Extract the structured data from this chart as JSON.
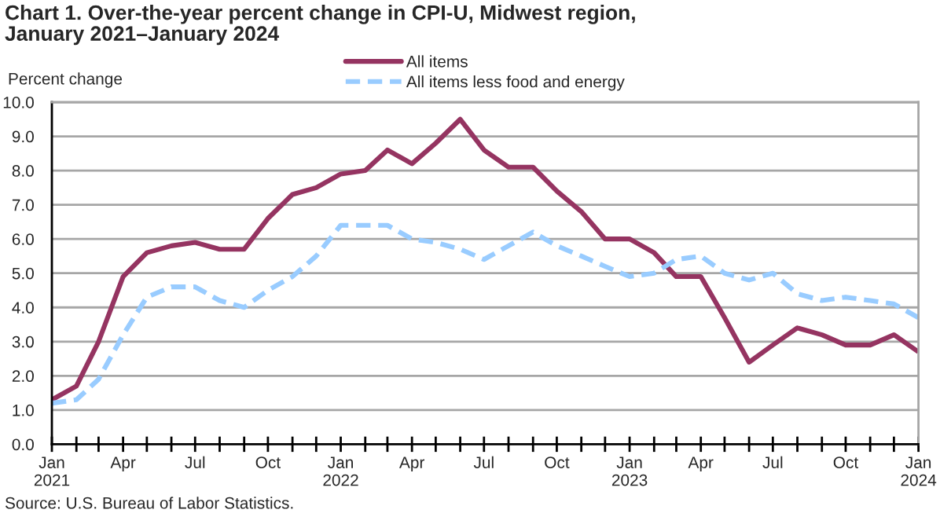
{
  "chart_data": {
    "type": "line",
    "title": "Chart 1. Over-the-year percent change in CPI-U, Midwest region,\nJanuary 2021–January 2024",
    "ylabel": "Percent change",
    "annotations": [
      "Source: U.S. Bureau of Labor Statistics."
    ],
    "x": [
      "2021-01",
      "2021-02",
      "2021-03",
      "2021-04",
      "2021-05",
      "2021-06",
      "2021-07",
      "2021-08",
      "2021-09",
      "2021-10",
      "2021-11",
      "2021-12",
      "2022-01",
      "2022-02",
      "2022-03",
      "2022-04",
      "2022-05",
      "2022-06",
      "2022-07",
      "2022-08",
      "2022-09",
      "2022-10",
      "2022-11",
      "2022-12",
      "2023-01",
      "2023-02",
      "2023-03",
      "2023-04",
      "2023-05",
      "2023-06",
      "2023-07",
      "2023-08",
      "2023-09",
      "2023-10",
      "2023-11",
      "2023-12",
      "2024-01"
    ],
    "series": [
      {
        "name": "All items",
        "color": "#953461",
        "line_style": "solid",
        "values": [
          1.3,
          1.7,
          3.0,
          4.9,
          5.6,
          5.8,
          5.9,
          5.7,
          5.7,
          6.6,
          7.3,
          7.5,
          7.9,
          8.0,
          8.6,
          8.2,
          8.8,
          9.5,
          8.6,
          8.1,
          8.1,
          7.4,
          6.8,
          6.0,
          6.0,
          5.6,
          4.9,
          4.9,
          3.7,
          2.4,
          2.9,
          3.4,
          3.2,
          2.9,
          2.9,
          3.2,
          2.7
        ]
      },
      {
        "name": "All items less food and energy",
        "color": "#99ccff",
        "line_style": "dashed",
        "values": [
          1.2,
          1.3,
          1.9,
          3.2,
          4.3,
          4.6,
          4.6,
          4.2,
          4.0,
          4.5,
          4.9,
          5.5,
          6.4,
          6.4,
          6.4,
          6.0,
          5.9,
          5.7,
          5.4,
          5.8,
          6.2,
          5.8,
          5.5,
          5.2,
          4.9,
          5.0,
          5.4,
          5.5,
          5.0,
          4.8,
          5.0,
          4.4,
          4.2,
          4.3,
          4.2,
          4.1,
          3.7
        ]
      }
    ],
    "xlim": [
      "2021-01",
      "2024-01"
    ],
    "xticks": [
      {
        "value": "2021-01",
        "label": "Jan\n2021"
      },
      {
        "value": "2021-02",
        "label": null
      },
      {
        "value": "2021-03",
        "label": null
      },
      {
        "value": "2021-04",
        "label": "Apr"
      },
      {
        "value": "2021-05",
        "label": null
      },
      {
        "value": "2021-06",
        "label": null
      },
      {
        "value": "2021-07",
        "label": "Jul"
      },
      {
        "value": "2021-08",
        "label": null
      },
      {
        "value": "2021-09",
        "label": null
      },
      {
        "value": "2021-10",
        "label": "Oct"
      },
      {
        "value": "2021-11",
        "label": null
      },
      {
        "value": "2021-12",
        "label": null
      },
      {
        "value": "2022-01",
        "label": "Jan\n2022"
      },
      {
        "value": "2022-02",
        "label": null
      },
      {
        "value": "2022-03",
        "label": null
      },
      {
        "value": "2022-04",
        "label": "Apr"
      },
      {
        "value": "2022-05",
        "label": null
      },
      {
        "value": "2022-06",
        "label": null
      },
      {
        "value": "2022-07",
        "label": "Jul"
      },
      {
        "value": "2022-08",
        "label": null
      },
      {
        "value": "2022-09",
        "label": null
      },
      {
        "value": "2022-10",
        "label": "Oct"
      },
      {
        "value": "2022-11",
        "label": null
      },
      {
        "value": "2022-12",
        "label": null
      },
      {
        "value": "2023-01",
        "label": "Jan\n2023"
      },
      {
        "value": "2023-02",
        "label": null
      },
      {
        "value": "2023-03",
        "label": null
      },
      {
        "value": "2023-04",
        "label": "Apr"
      },
      {
        "value": "2023-05",
        "label": null
      },
      {
        "value": "2023-06",
        "label": null
      },
      {
        "value": "2023-07",
        "label": "Jul"
      },
      {
        "value": "2023-08",
        "label": null
      },
      {
        "value": "2023-09",
        "label": null
      },
      {
        "value": "2023-10",
        "label": "Oct"
      },
      {
        "value": "2023-11",
        "label": null
      },
      {
        "value": "2023-12",
        "label": null
      },
      {
        "value": "2024-01",
        "label": "Jan\n2024"
      }
    ],
    "ylim": [
      0,
      10
    ],
    "yticks": [
      {
        "value": 0,
        "label": "0.0"
      },
      {
        "value": 1,
        "label": "1.0"
      },
      {
        "value": 2,
        "label": "2.0"
      },
      {
        "value": 3,
        "label": "3.0"
      },
      {
        "value": 4,
        "label": "4.0"
      },
      {
        "value": 5,
        "label": "5.0"
      },
      {
        "value": 6,
        "label": "6.0"
      },
      {
        "value": 7,
        "label": "7.0"
      },
      {
        "value": 8,
        "label": "8.0"
      },
      {
        "value": 9,
        "label": "9.0"
      },
      {
        "value": 10,
        "label": "10.0"
      }
    ],
    "grid": "y",
    "legend": "top"
  }
}
